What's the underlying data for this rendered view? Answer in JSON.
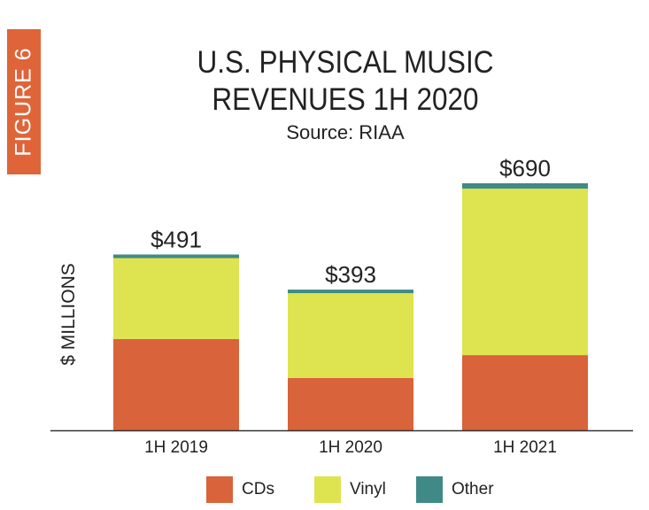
{
  "figure_label": "FIGURE 6",
  "chart_data": {
    "type": "bar",
    "stacked": true,
    "title": "U.S. PHYSICAL MUSIC REVENUES 1H 2020",
    "subtitle": "Source: RIAA",
    "ylabel": "$ MILLIONS",
    "xlabel": "",
    "ylim": [
      0,
      700
    ],
    "grid": false,
    "legend_position": "bottom",
    "categories": [
      "1H 2019",
      "1H 2020",
      "1H 2021"
    ],
    "totals_labels": [
      "$491",
      "$393",
      "$690"
    ],
    "series": [
      {
        "name": "CDs",
        "color": "#d9633a",
        "values": [
          255,
          146,
          210
        ]
      },
      {
        "name": "Vinyl",
        "color": "#dde44f",
        "values": [
          226,
          237,
          465
        ]
      },
      {
        "name": "Other",
        "color": "#3f8a86",
        "values": [
          10,
          10,
          15
        ]
      }
    ]
  }
}
